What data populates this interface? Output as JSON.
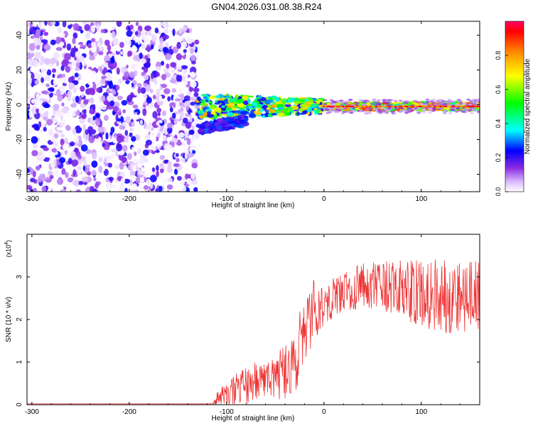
{
  "figure": {
    "title": "GN04.2026.031.08.38.R24"
  },
  "chart_data": [
    {
      "type": "heatmap",
      "xlabel": "Height of straight line (km)",
      "ylabel": "Frequency (Hz)",
      "xlim": [
        -305,
        160
      ],
      "ylim": [
        -50,
        48
      ],
      "xticks": [
        -300,
        -200,
        -100,
        0,
        100
      ],
      "yticks": [
        -40,
        -20,
        0,
        20,
        40
      ],
      "grid": false,
      "colorbar": {
        "label": "Normalized spectral amplitude",
        "range": [
          0,
          1
        ],
        "ticks": [
          0.0,
          0.2,
          0.4,
          0.6,
          0.8
        ],
        "colormap": "rainbow",
        "colors": [
          "#ffffff",
          "#cc99ff",
          "#6600cc",
          "#0000ff",
          "#00ffff",
          "#00ff00",
          "#ffff00",
          "#ff8800",
          "#ff0000",
          "#ff0066"
        ]
      },
      "regions": [
        {
          "x": [
            -305,
            -130
          ],
          "freq": [
            -50,
            48
          ],
          "amplitude": [
            0.0,
            0.25
          ],
          "kind": "broadband noise"
        },
        {
          "x": [
            -130,
            0
          ],
          "freq": [
            -8,
            6
          ],
          "amplitude": [
            0.2,
            0.8
          ],
          "kind": "scattered signal band"
        },
        {
          "x": [
            -130,
            -80
          ],
          "freq": [
            -18,
            -10
          ],
          "amplitude": [
            0.15,
            0.3
          ],
          "kind": "lower sideband"
        },
        {
          "x": [
            0,
            160
          ],
          "freq": [
            -3,
            1
          ],
          "amplitude": [
            0.4,
            0.95
          ],
          "kind": "narrow carrier band"
        }
      ]
    },
    {
      "type": "line",
      "xlabel": "Height of straight line (km)",
      "ylabel": "SNR (10 * v/v)",
      "y_multiplier": "(x10",
      "y_multiplier_exp": "4",
      "y_multiplier_close": ")",
      "xlim": [
        -305,
        160
      ],
      "ylim": [
        0,
        4
      ],
      "xticks": [
        -300,
        -200,
        -100,
        0,
        100
      ],
      "yticks": [
        0,
        1,
        2,
        3
      ],
      "grid": false,
      "series_color": "#ee3333",
      "envelope": {
        "x": [
          -305,
          -115,
          -110,
          -100,
          -80,
          -60,
          -40,
          -30,
          -25,
          -20,
          -15,
          -10,
          0,
          20,
          40,
          60,
          80,
          100,
          120,
          140,
          160
        ],
        "y": [
          0.02,
          0.02,
          0.1,
          0.25,
          0.45,
          0.6,
          0.75,
          0.9,
          1.4,
          1.8,
          2.1,
          2.2,
          2.4,
          2.65,
          2.8,
          2.75,
          2.7,
          2.6,
          2.6,
          2.55,
          2.5
        ],
        "noise": [
          0.0,
          0.0,
          0.2,
          0.35,
          0.5,
          0.6,
          0.7,
          0.8,
          0.9,
          1.0,
          1.0,
          0.8,
          0.6,
          0.5,
          0.6,
          0.7,
          0.8,
          0.9,
          1.0,
          1.0,
          1.0
        ]
      }
    }
  ]
}
